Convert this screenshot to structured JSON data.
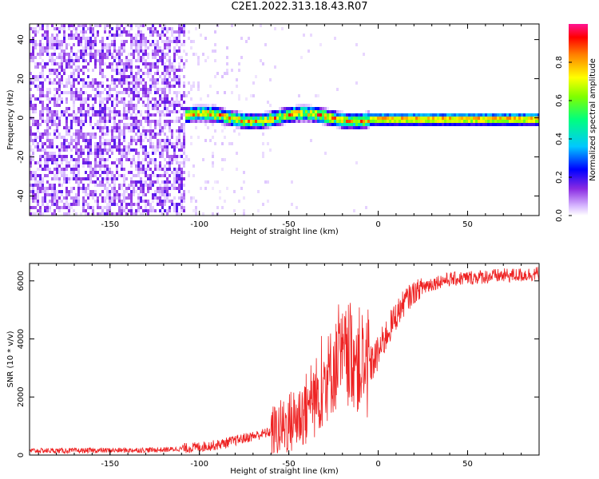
{
  "figure": {
    "title": "C2E1.2022.313.18.43.R07"
  },
  "colors": {
    "background": "#ffffff",
    "axis": "#000000",
    "snr_line": "#ee2222",
    "colormap": [
      "#ffffff",
      "#d7b8ff",
      "#8a2be2",
      "#0000ff",
      "#00c8ff",
      "#00ff7f",
      "#7fff00",
      "#ffff00",
      "#ff8000",
      "#ff0000",
      "#ff1493"
    ]
  },
  "chart_data": [
    {
      "type": "heatmap",
      "title": "",
      "xlabel": "Height of straight line (km)",
      "ylabel": "Frequency (Hz)",
      "xlim": [
        -195,
        90
      ],
      "ylim": [
        -50,
        48
      ],
      "xticks": [
        -150,
        -100,
        -50,
        0,
        50
      ],
      "xtick_labels": [
        "-150",
        "-100",
        "-50",
        "0",
        "50"
      ],
      "yticks": [
        -40,
        -20,
        0,
        20,
        40
      ],
      "ytick_labels": [
        "-40",
        "-20",
        "0",
        "20",
        "40"
      ],
      "colorbar": {
        "label": "Normalized spectral amplitude",
        "range": [
          0,
          1
        ],
        "ticks": [
          0.0,
          0.2,
          0.4,
          0.6,
          0.8
        ],
        "tick_labels": [
          "0.0",
          "0.2",
          "0.4",
          "0.6",
          "0.8"
        ]
      },
      "regions": [
        {
          "x": [
            -195,
            -108
          ],
          "description_value": "broadband noise, amplitude 0.1-0.3"
        },
        {
          "x": [
            -108,
            -5
          ],
          "center_freq_hz": 1,
          "band_halfwidth_hz": 5,
          "peak_amplitude": 0.95
        },
        {
          "x": [
            -5,
            90
          ],
          "center_freq_hz": 0,
          "band_halfwidth_hz": 4,
          "peak_amplitude": 0.95
        }
      ]
    },
    {
      "type": "line",
      "title": "",
      "xlabel": "Height of straight line (km)",
      "ylabel": "SNR (10 * v/v)",
      "xlim": [
        -195,
        90
      ],
      "ylim": [
        0,
        6600
      ],
      "xticks": [
        -150,
        -100,
        -50,
        0,
        50
      ],
      "xtick_labels": [
        "-150",
        "-100",
        "-50",
        "0",
        "50"
      ],
      "yticks": [
        0,
        2000,
        4000,
        6000
      ],
      "ytick_labels": [
        "0",
        "2000",
        "4000",
        "6000"
      ],
      "series": [
        {
          "x": [
            -195,
            -170,
            -150,
            -120,
            -110,
            -100,
            -90,
            -80,
            -70,
            -60,
            -55,
            -50,
            -45,
            -40,
            -35,
            -30,
            -25,
            -20,
            -15,
            -10,
            -5,
            0,
            5,
            10,
            15,
            20,
            25,
            30,
            35,
            40,
            50,
            60,
            70,
            80,
            90
          ],
          "y": [
            150,
            150,
            160,
            180,
            220,
            280,
            350,
            500,
            650,
            800,
            900,
            1100,
            1300,
            1600,
            2000,
            2500,
            3000,
            3300,
            3500,
            3200,
            3000,
            3500,
            4200,
            4800,
            5300,
            5600,
            5800,
            5900,
            6000,
            6050,
            6100,
            6150,
            6180,
            6200,
            6250
          ]
        }
      ]
    }
  ]
}
